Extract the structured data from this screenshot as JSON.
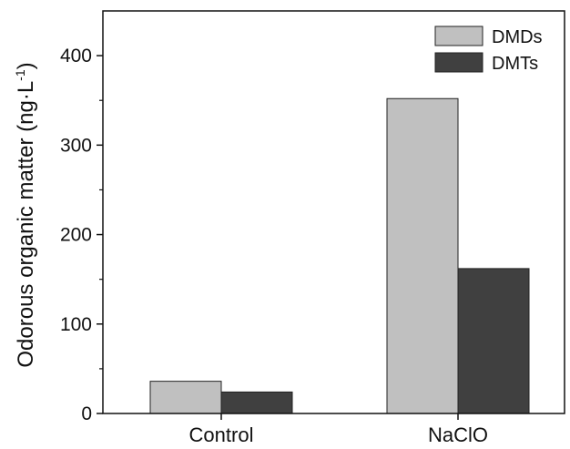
{
  "chart_data": {
    "type": "bar",
    "categories": [
      "Control",
      "NaClO"
    ],
    "series": [
      {
        "name": "DMDs",
        "values": [
          36,
          352
        ],
        "color": "#c0c0c0"
      },
      {
        "name": "DMTs",
        "values": [
          24,
          162
        ],
        "color": "#404040"
      }
    ],
    "xlabel": "",
    "ylabel": "Odorous organic matter (ng·L",
    "ylabel_unit_superscript": "-1",
    "ylabel_close": ")",
    "ylim": [
      0,
      450
    ],
    "yticks": [
      0,
      100,
      200,
      300,
      400
    ],
    "legend_position": "top-right",
    "grid": false
  }
}
